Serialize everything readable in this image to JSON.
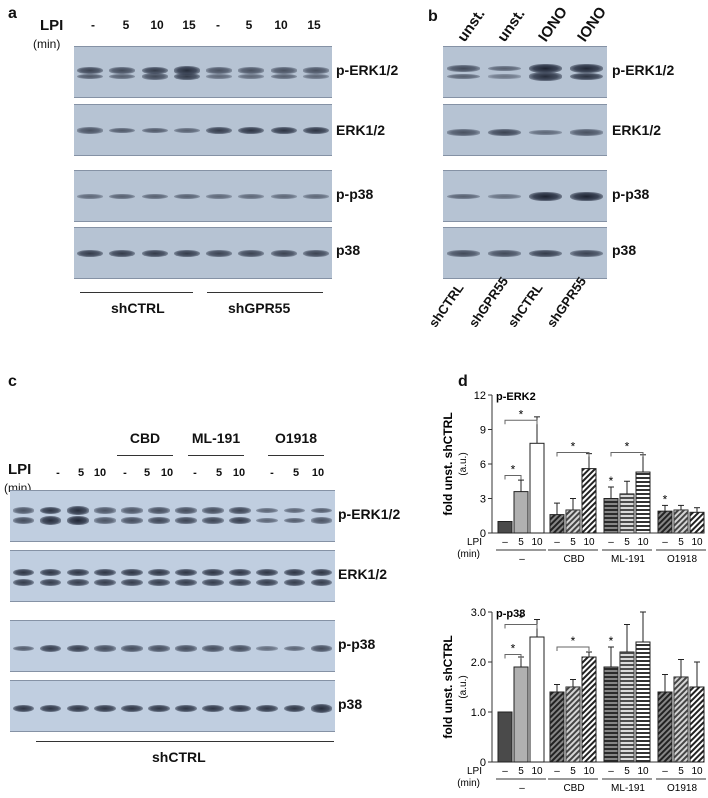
{
  "panels": {
    "a": "a",
    "b": "b",
    "c": "c",
    "d": "d"
  },
  "panel_a": {
    "lpi": "LPI",
    "unit": "(min)",
    "lanes": [
      "-",
      "5",
      "10",
      "15",
      "-",
      "5",
      "10",
      "15"
    ],
    "blots": [
      "p-ERK1/2",
      "ERK1/2",
      "p-p38",
      "p38"
    ],
    "groups": [
      "shCTRL",
      "shGPR55"
    ]
  },
  "panel_b": {
    "lanes_top": [
      "unst.",
      "unst.",
      "IONO",
      "IONO"
    ],
    "blots": [
      "p-ERK1/2",
      "ERK1/2",
      "p-p38",
      "p38"
    ],
    "lanes_bottom": [
      "shCTRL",
      "shGPR55",
      "shCTRL",
      "shGPR55"
    ]
  },
  "panel_c": {
    "lpi": "LPI",
    "unit": "(min)",
    "treatments": [
      "CBD",
      "ML-191",
      "O1918"
    ],
    "lanes": [
      "-",
      "5",
      "10",
      "-",
      "5",
      "10",
      "-",
      "5",
      "10",
      "-",
      "5",
      "10"
    ],
    "blots": [
      "p-ERK1/2",
      "ERK1/2",
      "p-p38",
      "p38"
    ],
    "group": "shCTRL"
  },
  "colors": {
    "blot": "#b6c3d3",
    "band": "#1c2230"
  },
  "chart_data": [
    {
      "type": "bar",
      "title": "p-ERK2",
      "ylabel": "fold unst. shCTRL",
      "yunit": "(a.u.)",
      "ylim": [
        0,
        12
      ],
      "yticks": [
        "0",
        "3",
        "6",
        "9",
        "12"
      ],
      "lpi_label": "LPI",
      "lpi_unit": "(min)",
      "groups": [
        "–",
        "CBD",
        "ML-191",
        "O1918"
      ],
      "lanes": [
        "–",
        "5",
        "10"
      ],
      "values": [
        [
          1,
          3.6,
          7.8
        ],
        [
          1.6,
          2.0,
          5.6
        ],
        [
          3.0,
          3.4,
          5.3
        ],
        [
          1.9,
          2.0,
          1.8
        ]
      ],
      "errors": [
        [
          0,
          1.0,
          2.3
        ],
        [
          1.0,
          1.0,
          1.3
        ],
        [
          1.0,
          1.1,
          1.5
        ],
        [
          0.5,
          0.4,
          0.4
        ]
      ],
      "significance": "*"
    },
    {
      "type": "bar",
      "title": "p-p38",
      "ylabel": "fold unst. shCTRL",
      "yunit": "(a.u.)",
      "ylim": [
        0,
        3
      ],
      "yticks": [
        "0",
        "1.0",
        "2.0",
        "3.0"
      ],
      "lpi_label": "LPI",
      "lpi_unit": "(min)",
      "groups": [
        "–",
        "CBD",
        "ML-191",
        "O1918"
      ],
      "lanes": [
        "–",
        "5",
        "10"
      ],
      "values": [
        [
          1.0,
          1.9,
          2.5
        ],
        [
          1.4,
          1.5,
          2.1
        ],
        [
          1.9,
          2.2,
          2.4
        ],
        [
          1.4,
          1.7,
          1.5
        ]
      ],
      "errors": [
        [
          0,
          0.2,
          0.35
        ],
        [
          0.15,
          0.15,
          0.1
        ],
        [
          0.4,
          0.55,
          0.6
        ],
        [
          0.35,
          0.35,
          0.5
        ]
      ],
      "significance": "*"
    }
  ]
}
